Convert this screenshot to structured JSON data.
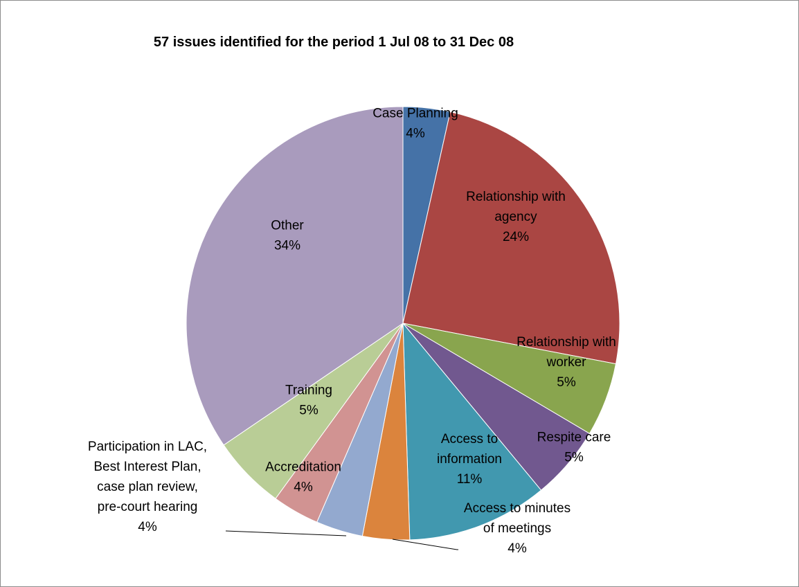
{
  "chart_data": {
    "type": "pie",
    "title": "57 issues identified for the period 1 Jul 08 to 31 Dec 08",
    "slices": [
      {
        "label": [
          "Case Planning",
          "4%"
        ],
        "value": 3.5,
        "color": "#4572a7"
      },
      {
        "label": [
          "Relationship with",
          "agency",
          "24%"
        ],
        "value": 24.5,
        "color": "#aa4643"
      },
      {
        "label": [
          "Relationship with",
          "worker",
          "5%"
        ],
        "value": 5.5,
        "color": "#89a54e"
      },
      {
        "label": [
          "Respite care",
          "5%"
        ],
        "value": 5.5,
        "color": "#71588f"
      },
      {
        "label": [
          "Access to",
          "information",
          "11%"
        ],
        "value": 10.5,
        "color": "#4198af"
      },
      {
        "label": [
          "Access to minutes",
          "of meetings",
          "4%"
        ],
        "value": 3.5,
        "color": "#db843d"
      },
      {
        "label": [
          "Participation in LAC,",
          "Best Interest Plan,",
          "case plan review,",
          "pre-court hearing",
          "4%"
        ],
        "value": 3.5,
        "color": "#93a9cf"
      },
      {
        "label": [
          "Accreditation",
          "4%"
        ],
        "value": 3.5,
        "color": "#d19392"
      },
      {
        "label": [
          "Training",
          "5%"
        ],
        "value": 5.5,
        "color": "#b9cd96"
      },
      {
        "label": [
          "Other",
          "34%"
        ],
        "value": 34.5,
        "color": "#a99bbd"
      }
    ]
  }
}
